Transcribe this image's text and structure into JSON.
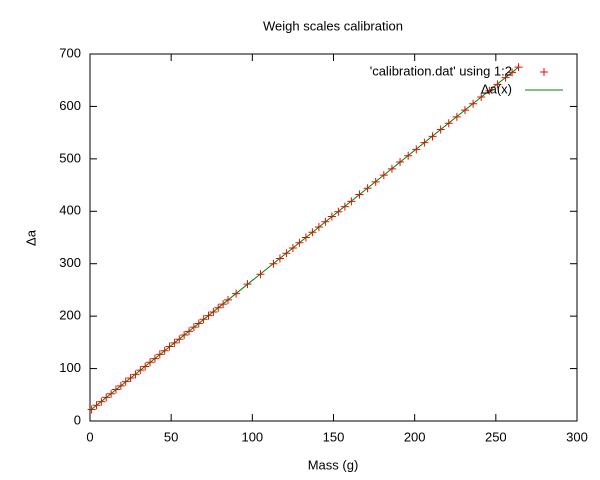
{
  "chart_data": {
    "type": "scatter",
    "title": "Weigh scales calibration",
    "xlabel": "Mass (g)",
    "ylabel": "Δa",
    "xlim": [
      0,
      300
    ],
    "xticks": [
      0,
      50,
      100,
      150,
      200,
      250,
      300
    ],
    "ylim": [
      0,
      700
    ],
    "yticks": [
      0,
      100,
      200,
      300,
      400,
      500,
      600,
      700
    ],
    "legend": "top-right",
    "series": [
      {
        "name": "'calibration.dat' using 1:2",
        "color": "#ff0000",
        "style": "points",
        "x": [
          1,
          4,
          7,
          10,
          13,
          16,
          19,
          22,
          25,
          28,
          31,
          34,
          37,
          40,
          43,
          46,
          49,
          52,
          55,
          58,
          61,
          64,
          67,
          70,
          73,
          76,
          79,
          82,
          85,
          90,
          97,
          105,
          113,
          117,
          121,
          125,
          129,
          133,
          137,
          141,
          145,
          149,
          153,
          157,
          161,
          166,
          171,
          176,
          181,
          186,
          191,
          196,
          201,
          206,
          211,
          216,
          221,
          226,
          231,
          236,
          241,
          246,
          251,
          256,
          260,
          264
        ],
        "values": [
          22,
          30,
          37,
          45,
          52,
          60,
          67,
          75,
          82,
          89,
          97,
          104,
          112,
          119,
          127,
          134,
          142,
          149,
          156,
          164,
          171,
          179,
          186,
          194,
          201,
          208,
          216,
          223,
          231,
          243,
          261,
          280,
          300,
          310,
          320,
          330,
          340,
          350,
          360,
          370,
          380,
          390,
          399,
          409,
          419,
          432,
          444,
          456,
          469,
          481,
          494,
          506,
          518,
          531,
          543,
          556,
          568,
          580,
          593,
          605,
          618,
          630,
          642,
          655,
          665,
          675
        ]
      },
      {
        "name": "Δa(x)",
        "color": "#008000",
        "style": "line",
        "x": [
          0,
          264
        ],
        "values": [
          20,
          675
        ]
      }
    ]
  }
}
